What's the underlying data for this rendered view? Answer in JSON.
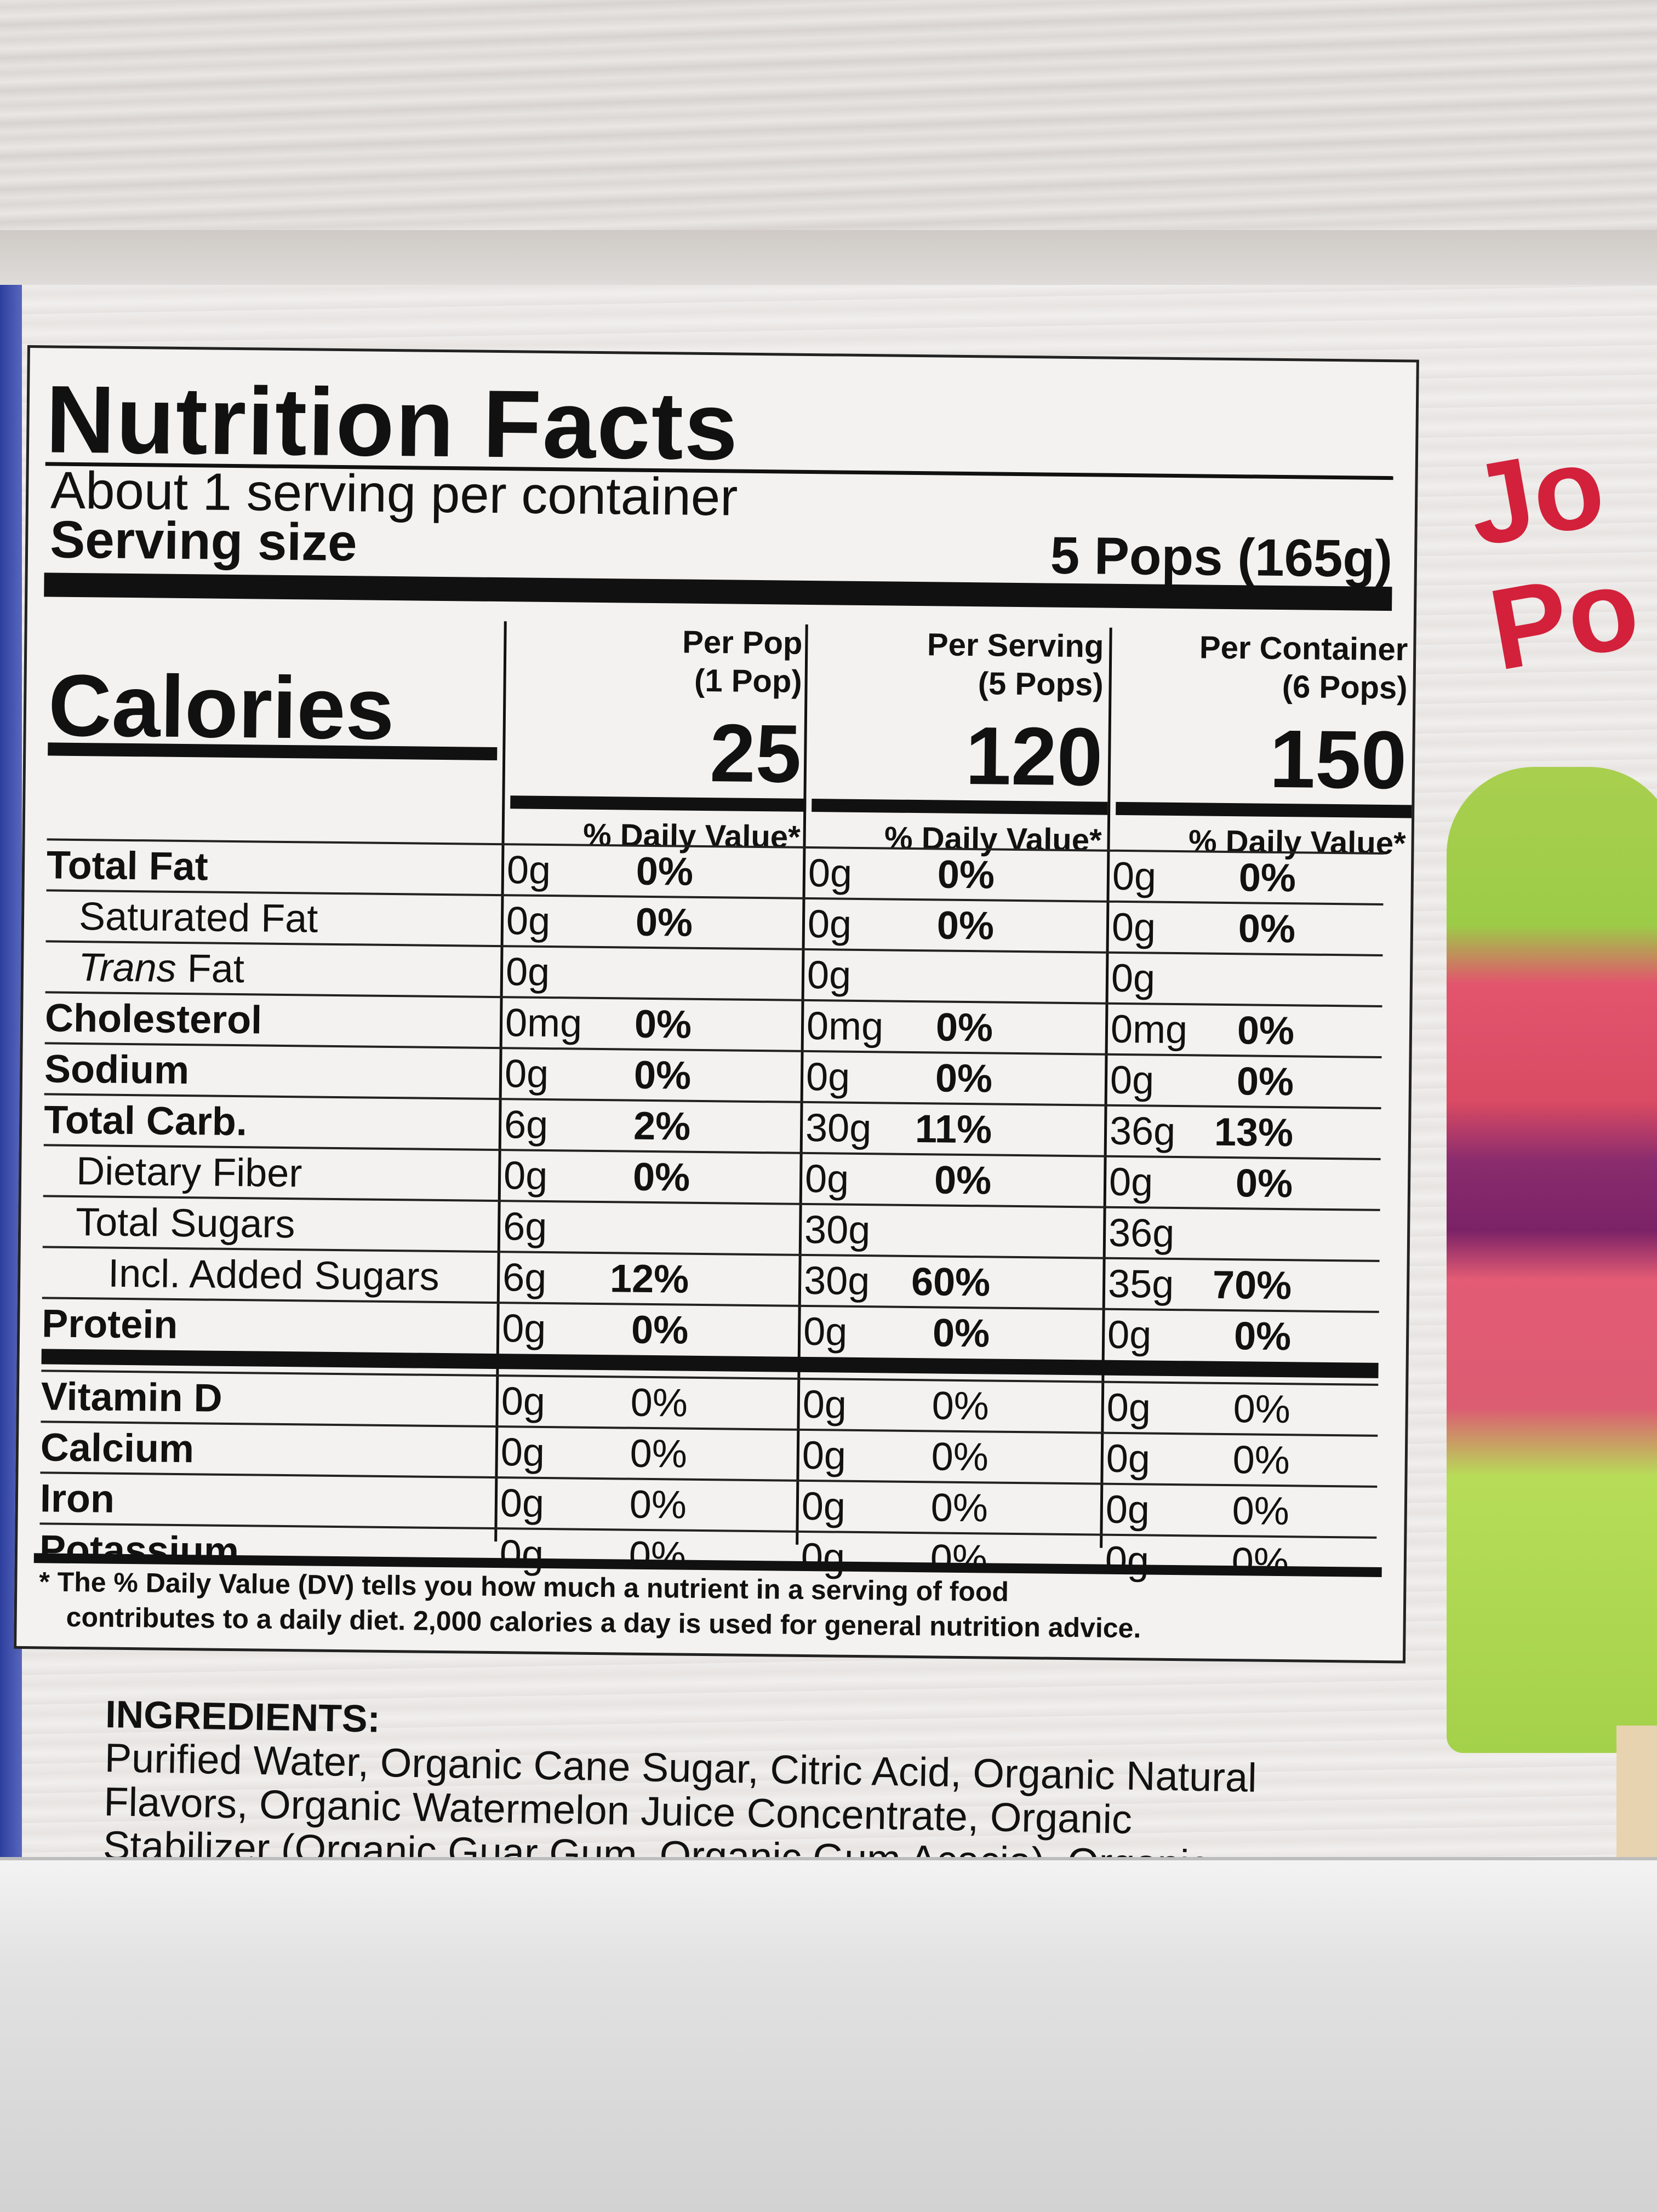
{
  "panel": {
    "title": "Nutrition Facts",
    "servings": "About 1 serving per container",
    "serving_size_label": "Serving size",
    "serving_size_value": "5 Pops (165g)",
    "calories_label": "Calories",
    "columns": [
      {
        "head1": "Per Pop",
        "head2": "(1 Pop)",
        "calories": "25",
        "dv_label": "% Daily Value*"
      },
      {
        "head1": "Per Serving",
        "head2": "(5 Pops)",
        "calories": "120",
        "dv_label": "% Daily Value*"
      },
      {
        "head1": "Per Container",
        "head2": "(6 Pops)",
        "calories": "150",
        "dv_label": "% Daily Value*"
      }
    ],
    "rows": [
      {
        "name": "Total Fat",
        "style": "bold",
        "values": [
          [
            "0g",
            "0%"
          ],
          [
            "0g",
            "0%"
          ],
          [
            "0g",
            "0%"
          ]
        ]
      },
      {
        "name": "Saturated Fat",
        "style": "sub",
        "values": [
          [
            "0g",
            "0%"
          ],
          [
            "0g",
            "0%"
          ],
          [
            "0g",
            "0%"
          ]
        ]
      },
      {
        "name_italic": "Trans",
        "name_rest": " Fat",
        "style": "sub",
        "values": [
          [
            "0g",
            ""
          ],
          [
            "0g",
            ""
          ],
          [
            "0g",
            ""
          ]
        ]
      },
      {
        "name": "Cholesterol",
        "style": "bold",
        "values": [
          [
            "0mg",
            "0%"
          ],
          [
            "0mg",
            "0%"
          ],
          [
            "0mg",
            "0%"
          ]
        ]
      },
      {
        "name": "Sodium",
        "style": "bold",
        "values": [
          [
            "0g",
            "0%"
          ],
          [
            "0g",
            "0%"
          ],
          [
            "0g",
            "0%"
          ]
        ]
      },
      {
        "name": "Total Carb.",
        "style": "bold",
        "values": [
          [
            "6g",
            "2%"
          ],
          [
            "30g",
            "11%"
          ],
          [
            "36g",
            "13%"
          ]
        ]
      },
      {
        "name": "Dietary Fiber",
        "style": "sub",
        "values": [
          [
            "0g",
            "0%"
          ],
          [
            "0g",
            "0%"
          ],
          [
            "0g",
            "0%"
          ]
        ]
      },
      {
        "name": "Total Sugars",
        "style": "sub",
        "values": [
          [
            "6g",
            ""
          ],
          [
            "30g",
            ""
          ],
          [
            "36g",
            ""
          ]
        ]
      },
      {
        "name": "Incl. Added Sugars",
        "style": "subsub",
        "values": [
          [
            "6g",
            "12%"
          ],
          [
            "30g",
            "60%"
          ],
          [
            "35g",
            "70%"
          ]
        ]
      },
      {
        "name": "Protein",
        "style": "bold",
        "values": [
          [
            "0g",
            "0%"
          ],
          [
            "0g",
            "0%"
          ],
          [
            "0g",
            "0%"
          ]
        ]
      }
    ],
    "vitamins": [
      {
        "name": "Vitamin D",
        "values": [
          [
            "0g",
            "0%"
          ],
          [
            "0g",
            "0%"
          ],
          [
            "0g",
            "0%"
          ]
        ]
      },
      {
        "name": "Calcium",
        "values": [
          [
            "0g",
            "0%"
          ],
          [
            "0g",
            "0%"
          ],
          [
            "0g",
            "0%"
          ]
        ]
      },
      {
        "name": "Iron",
        "values": [
          [
            "0g",
            "0%"
          ],
          [
            "0g",
            "0%"
          ],
          [
            "0g",
            "0%"
          ]
        ]
      },
      {
        "name": "Potassium",
        "values": [
          [
            "0g",
            "0%"
          ],
          [
            "0g",
            "0%"
          ],
          [
            "0g",
            "0%"
          ]
        ]
      }
    ],
    "footnote_line1": "* The % Daily Value (DV) tells you how much a nutrient in a serving of food",
    "footnote_line2": "contributes to a daily diet. 2,000 calories a day is used for general nutrition advice."
  },
  "ingredients": {
    "heading": "INGREDIENTS:",
    "line1": "Purified Water, Organic Cane Sugar, Citric Acid, Organic Natural",
    "line2": "Flavors, Organic Watermelon Juice Concentrate, Organic",
    "line3": "Stabilizer (Organic Guar Gum, Organic Gum Acacia), Organic"
  },
  "brand": {
    "line1": "Jo",
    "line2": "Po"
  },
  "colors": {
    "brand_red": "#d3213b",
    "panel_ink": "#111111"
  }
}
